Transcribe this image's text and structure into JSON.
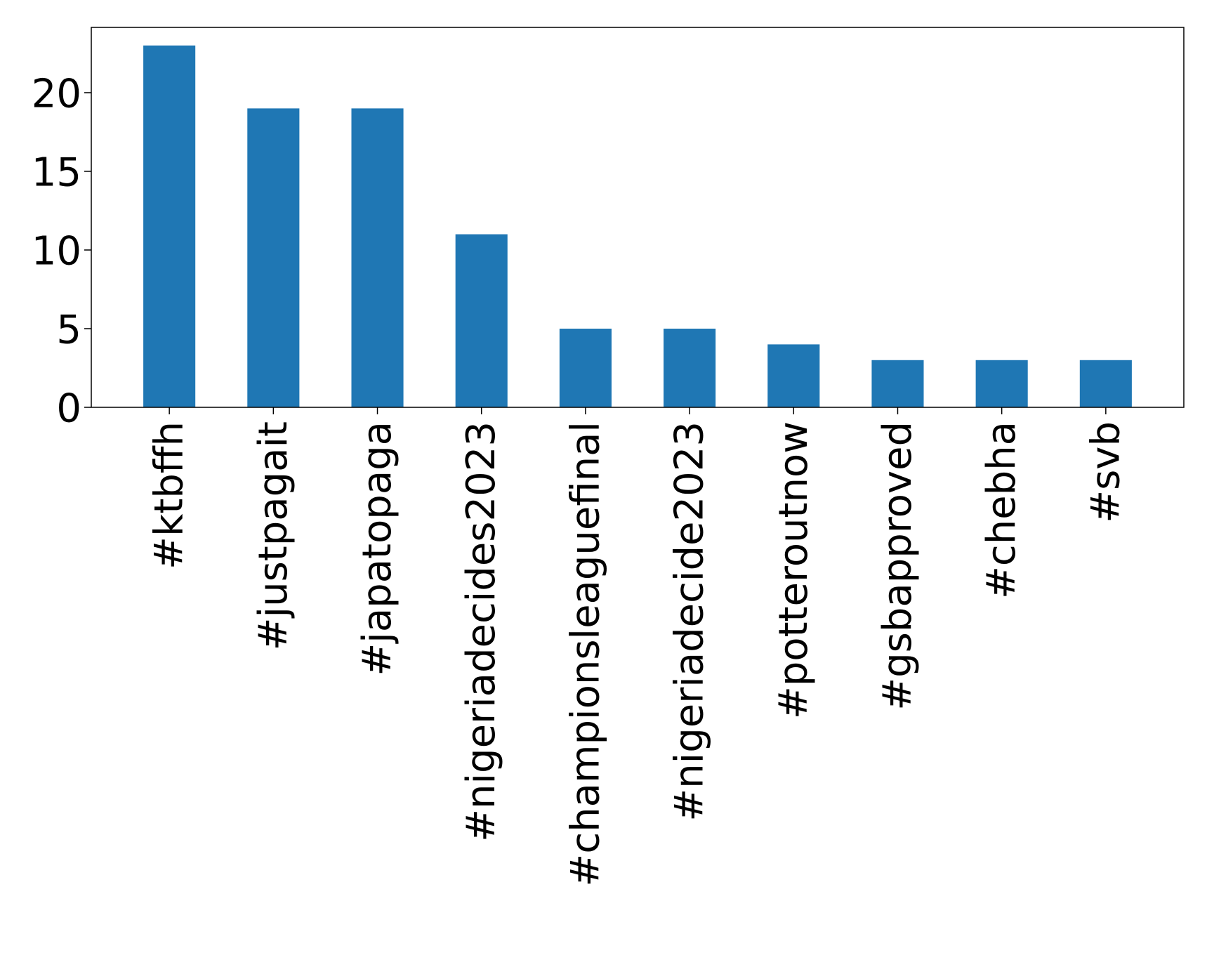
{
  "chart_data": {
    "type": "bar",
    "title": "",
    "xlabel": "",
    "ylabel": "",
    "categories": [
      "#ktbffh",
      "#justpagait",
      "#japatopaga",
      "#nigeriadecides2023",
      "#championsleaguefinal",
      "#nigeriadecide2023",
      "#potteroutnow",
      "#gsbapproved",
      "#chebha",
      "#svb"
    ],
    "values": [
      23,
      19,
      19,
      11,
      5,
      5,
      4,
      3,
      3,
      3
    ],
    "ylim": [
      0,
      24.15
    ],
    "yticks": [
      0,
      5,
      10,
      15,
      20
    ],
    "grid": false,
    "legend": "none",
    "bar_color": "#1f77b4"
  }
}
